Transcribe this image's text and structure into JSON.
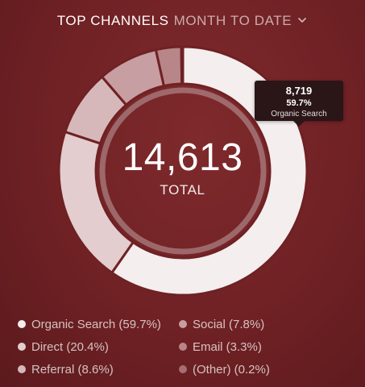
{
  "header": {
    "title": "TOP CHANNELS",
    "period": "MONTH TO DATE"
  },
  "center": {
    "total": "14,613",
    "label": "TOTAL"
  },
  "tooltip": {
    "value": "8,719",
    "percent": "59.7%",
    "name": "Organic Search"
  },
  "legend": [
    {
      "label": "Organic Search (59.7%)",
      "color": "#f4eeee"
    },
    {
      "label": "Direct (20.4%)",
      "color": "#e3cdce"
    },
    {
      "label": "Referral (8.6%)",
      "color": "#d6b8ba"
    },
    {
      "label": "Social (7.8%)",
      "color": "#c79ea1"
    },
    {
      "label": "Email (3.3%)",
      "color": "#b88689"
    },
    {
      "label": "(Other) (0.2%)",
      "color": "#a66e72"
    }
  ],
  "chart_data": {
    "type": "pie",
    "title": "TOP CHANNELS",
    "total": 14613,
    "series": [
      {
        "name": "Organic Search",
        "percent": 59.7,
        "value": 8719,
        "color": "#f4eeee"
      },
      {
        "name": "Direct",
        "percent": 20.4,
        "color": "#e3cdce"
      },
      {
        "name": "Referral",
        "percent": 8.6,
        "color": "#d6b8ba"
      },
      {
        "name": "Social",
        "percent": 7.8,
        "color": "#c79ea1"
      },
      {
        "name": "Email",
        "percent": 3.3,
        "color": "#b88689"
      },
      {
        "name": "(Other)",
        "percent": 0.2,
        "color": "#a66e72"
      }
    ],
    "legend_position": "bottom"
  }
}
